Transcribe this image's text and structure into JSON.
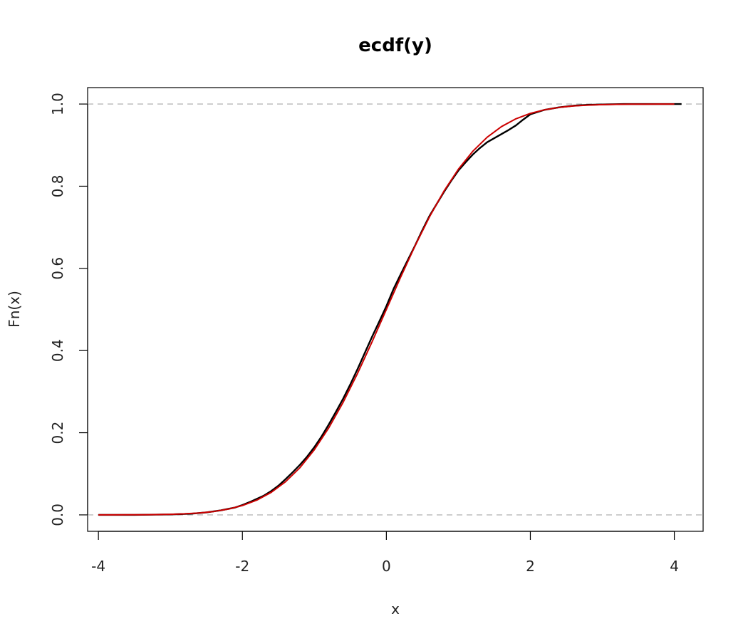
{
  "chart_data": {
    "type": "line",
    "title": "ecdf(y)",
    "xlabel": "x",
    "ylabel": "Fn(x)",
    "xlim": [
      -4.15,
      4.4
    ],
    "ylim": [
      -0.04,
      1.04
    ],
    "xticks": [
      "-4",
      "-2",
      "0",
      "2",
      "4"
    ],
    "yticks": [
      "0.0",
      "0.2",
      "0.4",
      "0.6",
      "0.8",
      "1.0"
    ],
    "reference_lines_y": [
      0,
      1
    ],
    "grid": false,
    "series": [
      {
        "color": "#000000",
        "x": [
          -4.0,
          -3.5,
          -3.0,
          -2.7,
          -2.5,
          -2.3,
          -2.1,
          -2.0,
          -1.9,
          -1.8,
          -1.7,
          -1.6,
          -1.5,
          -1.4,
          -1.3,
          -1.2,
          -1.1,
          -1.0,
          -0.9,
          -0.8,
          -0.7,
          -0.6,
          -0.5,
          -0.4,
          -0.3,
          -0.2,
          -0.1,
          0.0,
          0.1,
          0.2,
          0.3,
          0.4,
          0.5,
          0.6,
          0.7,
          0.8,
          0.9,
          1.0,
          1.1,
          1.2,
          1.3,
          1.4,
          1.5,
          1.6,
          1.7,
          1.8,
          1.9,
          2.0,
          2.2,
          2.4,
          2.6,
          2.8,
          3.0,
          3.3,
          3.6,
          4.1
        ],
        "y": [
          0.0,
          0.0,
          0.001,
          0.003,
          0.006,
          0.011,
          0.018,
          0.024,
          0.031,
          0.039,
          0.047,
          0.058,
          0.071,
          0.087,
          0.104,
          0.122,
          0.142,
          0.165,
          0.191,
          0.22,
          0.251,
          0.283,
          0.318,
          0.355,
          0.394,
          0.433,
          0.47,
          0.508,
          0.55,
          0.586,
          0.621,
          0.656,
          0.693,
          0.728,
          0.757,
          0.786,
          0.813,
          0.838,
          0.858,
          0.877,
          0.893,
          0.907,
          0.917,
          0.927,
          0.937,
          0.948,
          0.962,
          0.975,
          0.986,
          0.992,
          0.996,
          0.998,
          0.999,
          1.0,
          1.0,
          1.0
        ]
      },
      {
        "color": "#cc0000",
        "x": [
          -4.0,
          -3.8,
          -3.6,
          -3.4,
          -3.2,
          -3.0,
          -2.8,
          -2.6,
          -2.4,
          -2.2,
          -2.0,
          -1.8,
          -1.6,
          -1.4,
          -1.2,
          -1.0,
          -0.8,
          -0.6,
          -0.4,
          -0.2,
          0.0,
          0.2,
          0.4,
          0.6,
          0.8,
          1.0,
          1.2,
          1.4,
          1.6,
          1.8,
          2.0,
          2.2,
          2.4,
          2.6,
          2.8,
          3.0,
          3.2,
          3.4,
          3.6,
          3.8,
          4.0
        ],
        "y": [
          0.0,
          0.0001,
          0.0002,
          0.0003,
          0.0007,
          0.0013,
          0.0026,
          0.0047,
          0.0082,
          0.0139,
          0.0228,
          0.0359,
          0.0548,
          0.0808,
          0.1151,
          0.1587,
          0.2119,
          0.2743,
          0.3446,
          0.4207,
          0.5,
          0.5793,
          0.6554,
          0.7257,
          0.7881,
          0.8413,
          0.8849,
          0.9192,
          0.9452,
          0.9641,
          0.9772,
          0.9861,
          0.9918,
          0.9953,
          0.9974,
          0.9987,
          0.9993,
          0.9997,
          0.9998,
          0.9999,
          1.0
        ]
      }
    ]
  }
}
